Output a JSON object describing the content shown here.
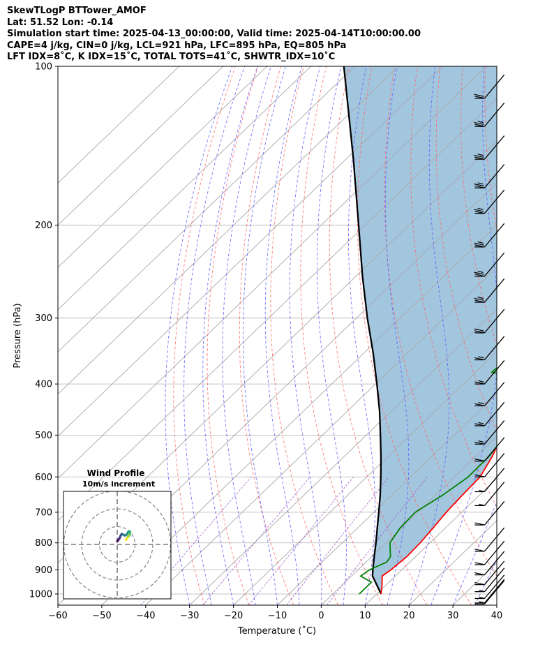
{
  "header": {
    "lines": [
      "SkewTLogP BTTower_AMOF",
      "Lat: 51.52   Lon: -0.14",
      "Simulation start time: 2025-04-13_00:00:00, Valid time: 2025-04-14T10:00:00.00",
      "CAPE=4 j/kg, CIN=0 j/kg, LCL=921 hPa, LFC=895 hPa, EQ=805 hPa",
      "LFT IDX=8˚C, K IDX=15˚C, TOTAL TOTS=41˚C, SHWTR_IDX=10˚C"
    ]
  },
  "chart_data": [
    {
      "type": "line",
      "name": "skew-t-log-p",
      "xlabel": "Temperature (˚C)",
      "ylabel": "Pressure (hPa)",
      "xlim": [
        -60,
        40
      ],
      "ylim": [
        1050,
        100
      ],
      "y_scale": "log",
      "grid": true,
      "x_ticks": [
        -60,
        -50,
        -40,
        -30,
        -20,
        -10,
        0,
        10,
        20,
        30,
        40
      ],
      "x_tick_labels": [
        "−60",
        "−50",
        "−40",
        "−30",
        "−20",
        "−10",
        "0",
        "10",
        "20",
        "30",
        "40"
      ],
      "y_ticks": [
        1000,
        900,
        800,
        700,
        600,
        500,
        400,
        300,
        200,
        100
      ],
      "y_tick_labels": [
        "1000",
        "900",
        "800",
        "700",
        "600",
        "500",
        "400",
        "300",
        "200",
        "100"
      ],
      "colors": {
        "temperature": "#ff0000",
        "dewpoint": "#008000",
        "parcel": "#000000",
        "shade": "#a3c6df",
        "dry_adiabats": "#ff6464",
        "moist_adiabats": "#5a5aff",
        "mixing_ratio": "#9a4fc9",
        "isotherms": "#a8a8a8",
        "barbs": "#000000"
      },
      "temperature": {
        "p": [
          1000,
          960,
          925,
          900,
          850,
          800,
          750,
          700,
          650,
          600,
          550,
          500,
          450,
          400,
          350,
          300,
          270,
          250,
          240,
          220,
          200,
          180,
          170,
          160,
          150,
          140,
          130,
          120,
          110,
          100
        ],
        "t": [
          11,
          9,
          7,
          7.5,
          8,
          7.8,
          7.2,
          6.5,
          6.1,
          5.8,
          3.8,
          1.0,
          -2.2,
          -5.9,
          -10.5,
          -15.0,
          -18.5,
          -19.0,
          -18.4,
          -13.8,
          -9.2,
          -6.6,
          -5.5,
          -3.8,
          -3.0,
          -2.5,
          -1.6,
          -0.8,
          0.6,
          2.7
        ]
      },
      "dewpoint": {
        "p": [
          1000,
          950,
          925,
          900,
          870,
          850,
          800,
          750,
          700,
          650,
          600,
          550,
          500,
          450,
          420,
          390,
          380,
          350,
          330,
          300,
          270,
          240,
          220,
          200,
          180,
          100
        ],
        "t": [
          6.0,
          6.0,
          2.1,
          2.6,
          4.7,
          4.3,
          0.9,
          -0.3,
          -0.6,
          1.6,
          3.1,
          3.0,
          1.8,
          -0.8,
          -3.4,
          -8.5,
          -16.3,
          -16.0,
          -13.1,
          -15.7,
          -18.6,
          -19.8,
          -20.8,
          -23.3,
          -26.1,
          -31.5
        ]
      },
      "parcel": {
        "p": [
          1000,
          925,
          900,
          850,
          800,
          750,
          700,
          650,
          600,
          550,
          500,
          450,
          400,
          350,
          300,
          250,
          200,
          150,
          100
        ],
        "t": [
          11.0,
          4.8,
          3.4,
          0.6,
          -2.3,
          -5.5,
          -8.9,
          -12.6,
          -16.8,
          -21.5,
          -26.8,
          -32.7,
          -39.7,
          -47.8,
          -57.5,
          -68.5,
          -81.5,
          -98.3,
          -122.5
        ]
      },
      "wind_barbs": {
        "p": [
          1045,
          1040,
          1020,
          990,
          960,
          920,
          880,
          830,
          740,
          680,
          640,
          600,
          560,
          520,
          480,
          440,
          400,
          360,
          320,
          280,
          250,
          220,
          190,
          170,
          150,
          130,
          115
        ],
        "speed_kt": [
          2,
          5,
          5,
          5,
          10,
          10,
          10,
          10,
          10,
          5,
          5,
          10,
          10,
          15,
          15,
          15,
          15,
          15,
          20,
          25,
          25,
          25,
          25,
          25,
          25,
          25,
          20
        ]
      }
    },
    {
      "type": "line",
      "name": "wind-profile-hodograph",
      "title": "Wind Profile",
      "subtitle": "10m/s increment",
      "ring_interval": 10,
      "grid": true,
      "series": [
        {
          "u": [
            0,
            0.8,
            2.0,
            3.0,
            4.0,
            5.0,
            6.0,
            7.2,
            8.4,
            10.4,
            12.4,
            14.0,
            16.8,
            18.8,
            20.4,
            22.0,
            23.6,
            24.4,
            24.0,
            23.2,
            22.4,
            21.2,
            20.8,
            19.2,
            18.0,
            16.4,
            15.6
          ],
          "v": [
            5.6,
            7.0,
            8.4,
            9.6,
            10.8,
            13.2,
            15.6,
            18.0,
            19.6,
            18.8,
            17.6,
            16.8,
            17.6,
            20.0,
            22.8,
            24.4,
            24.4,
            22.4,
            20.0,
            17.6,
            16.4,
            16.0,
            14.8,
            12.8,
            10.8,
            8.8,
            8.4
          ]
        }
      ]
    }
  ]
}
